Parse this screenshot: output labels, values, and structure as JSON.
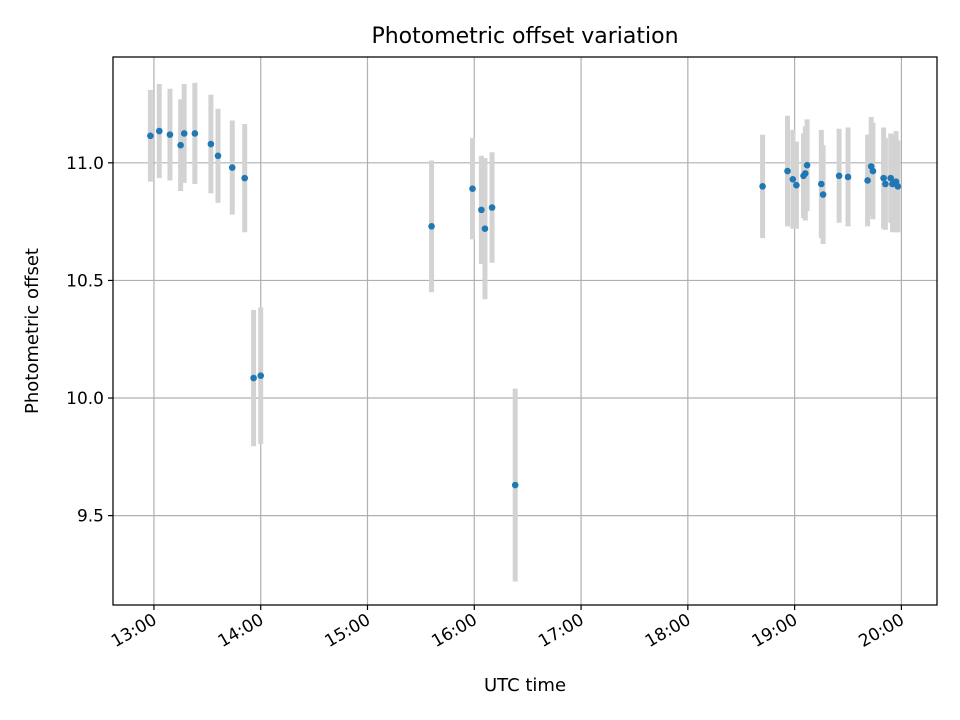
{
  "chart_data": {
    "type": "scatter",
    "title": "Photometric offset variation",
    "xlabel": "UTC time",
    "ylabel": "Photometric offset",
    "xlim": [
      "12:37",
      "20:20"
    ],
    "ylim": [
      9.12,
      11.45
    ],
    "x_ticks": [
      "13:00",
      "14:00",
      "15:00",
      "16:00",
      "17:00",
      "18:00",
      "19:00",
      "20:00"
    ],
    "y_ticks": [
      9.5,
      10.0,
      10.5,
      11.0
    ],
    "grid": true,
    "marker_color": "#1f77b4",
    "errorbar_color": "#d3d3d3",
    "points": [
      {
        "x": "12:58",
        "y": 11.115,
        "err": 0.195
      },
      {
        "x": "13:03",
        "y": 11.135,
        "err": 0.2
      },
      {
        "x": "13:09",
        "y": 11.12,
        "err": 0.195
      },
      {
        "x": "13:15",
        "y": 11.075,
        "err": 0.195
      },
      {
        "x": "13:17",
        "y": 11.125,
        "err": 0.21
      },
      {
        "x": "13:23",
        "y": 11.125,
        "err": 0.215
      },
      {
        "x": "13:32",
        "y": 11.08,
        "err": 0.21
      },
      {
        "x": "13:36",
        "y": 11.03,
        "err": 0.2
      },
      {
        "x": "13:44",
        "y": 10.98,
        "err": 0.2
      },
      {
        "x": "13:51",
        "y": 10.935,
        "err": 0.23
      },
      {
        "x": "13:56",
        "y": 10.085,
        "err": 0.29
      },
      {
        "x": "14:00",
        "y": 10.095,
        "err": 0.29
      },
      {
        "x": "15:36",
        "y": 10.73,
        "err": 0.28
      },
      {
        "x": "15:59",
        "y": 10.89,
        "err": 0.215
      },
      {
        "x": "16:04",
        "y": 10.8,
        "err": 0.23
      },
      {
        "x": "16:06",
        "y": 10.72,
        "err": 0.3
      },
      {
        "x": "16:10",
        "y": 10.81,
        "err": 0.235
      },
      {
        "x": "16:23",
        "y": 9.63,
        "err": 0.41
      },
      {
        "x": "18:42",
        "y": 10.9,
        "err": 0.22
      },
      {
        "x": "18:56",
        "y": 10.965,
        "err": 0.235
      },
      {
        "x": "18:59",
        "y": 10.93,
        "err": 0.21
      },
      {
        "x": "19:01",
        "y": 10.905,
        "err": 0.185
      },
      {
        "x": "19:05",
        "y": 10.945,
        "err": 0.18
      },
      {
        "x": "19:06",
        "y": 10.955,
        "err": 0.2
      },
      {
        "x": "19:07",
        "y": 10.99,
        "err": 0.195
      },
      {
        "x": "19:15",
        "y": 10.91,
        "err": 0.23
      },
      {
        "x": "19:16",
        "y": 10.865,
        "err": 0.21
      },
      {
        "x": "19:25",
        "y": 10.945,
        "err": 0.2
      },
      {
        "x": "19:30",
        "y": 10.94,
        "err": 0.21
      },
      {
        "x": "19:41",
        "y": 10.925,
        "err": 0.195
      },
      {
        "x": "19:43",
        "y": 10.985,
        "err": 0.21
      },
      {
        "x": "19:44",
        "y": 10.965,
        "err": 0.205
      },
      {
        "x": "19:50",
        "y": 10.935,
        "err": 0.215
      },
      {
        "x": "19:51",
        "y": 10.91,
        "err": 0.195
      },
      {
        "x": "19:54",
        "y": 10.935,
        "err": 0.19
      },
      {
        "x": "19:55",
        "y": 10.91,
        "err": 0.205
      },
      {
        "x": "19:57",
        "y": 10.92,
        "err": 0.215
      },
      {
        "x": "19:58",
        "y": 10.9,
        "err": 0.195
      }
    ]
  }
}
